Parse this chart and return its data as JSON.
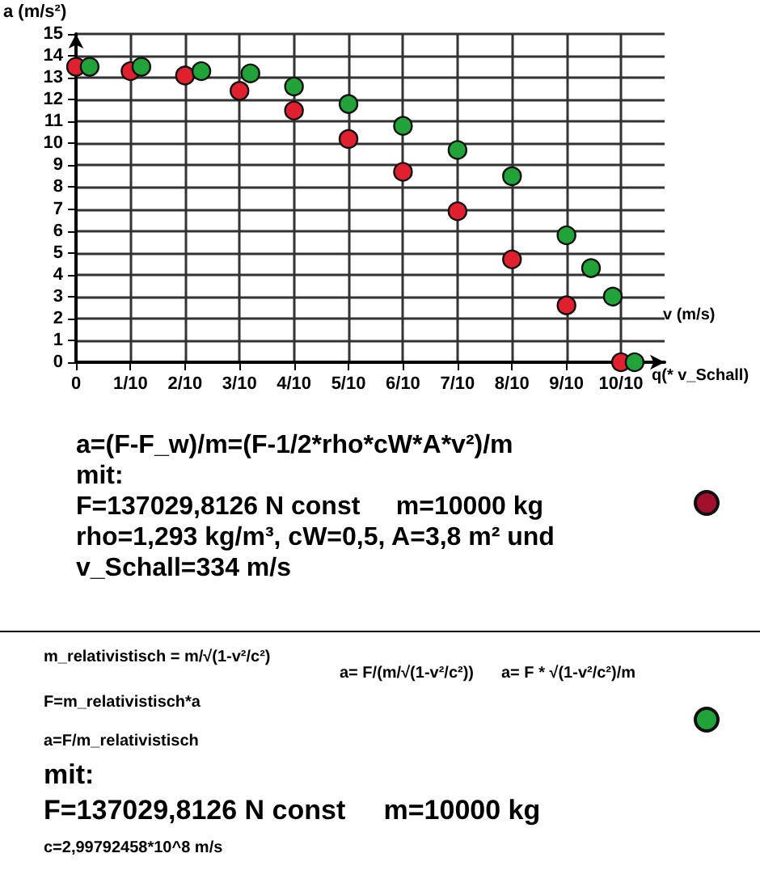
{
  "chart_data": {
    "type": "scatter",
    "xlabel": "v (m/s)",
    "ylabel": "a (m/s²)",
    "xlim": [
      0,
      1.08
    ],
    "ylim": [
      0,
      15
    ],
    "xticks": [
      {
        "value": 0,
        "label": "0"
      },
      {
        "value": 0.1,
        "label": "1/10"
      },
      {
        "value": 0.2,
        "label": "2/10"
      },
      {
        "value": 0.3,
        "label": "3/10"
      },
      {
        "value": 0.4,
        "label": "4/10"
      },
      {
        "value": 0.5,
        "label": "5/10"
      },
      {
        "value": 0.6,
        "label": "6/10"
      },
      {
        "value": 0.7,
        "label": "7/10"
      },
      {
        "value": 0.8,
        "label": "8/10"
      },
      {
        "value": 0.9,
        "label": "9/10"
      },
      {
        "value": 1,
        "label": "10/10"
      }
    ],
    "yticks": [
      0,
      1,
      2,
      3,
      4,
      5,
      6,
      7,
      8,
      9,
      10,
      11,
      12,
      13,
      14,
      15
    ],
    "grid": true,
    "marker": "circle",
    "series": [
      {
        "color": "#e0202e",
        "x": [
          0,
          0.1,
          0.2,
          0.3,
          0.4,
          0.5,
          0.6,
          0.7,
          0.8,
          0.9,
          1.0
        ],
        "values": [
          13.5,
          13.3,
          13.1,
          12.4,
          11.5,
          10.2,
          8.7,
          6.9,
          4.7,
          2.6,
          0
        ]
      },
      {
        "color": "#22a33a",
        "x": [
          0.025,
          0.12,
          0.23,
          0.32,
          0.4,
          0.5,
          0.6,
          0.7,
          0.8,
          0.9,
          0.945,
          0.985,
          1.025
        ],
        "values": [
          13.5,
          13.5,
          13.3,
          13.2,
          12.6,
          11.8,
          10.8,
          9.7,
          8.5,
          5.8,
          4.3,
          3.0,
          0
        ]
      }
    ],
    "annotations": [
      "q(* v_Schall)",
      "a=(F-F_w)/m=(F-1/2*rho*cW*A*v²)/m\nmit:\nF=137029,8126 N const     m=10000 kg\nrho=1,293 kg/m³, cW=0,5, A=3,8 m² und\nv_Schall=334 m/s",
      "m_relativistisch = m/√(1-v²/c²)",
      "F=m_relativistisch*a",
      "a=F/m_relativistisch",
      "a= F/(m/√(1-v²/c²))",
      "a= F * √(1-v²/c²)/m",
      "mit:\nF=137029,8126 N const     m=10000 kg",
      "c=2,99792458*10^8 m/s"
    ]
  }
}
